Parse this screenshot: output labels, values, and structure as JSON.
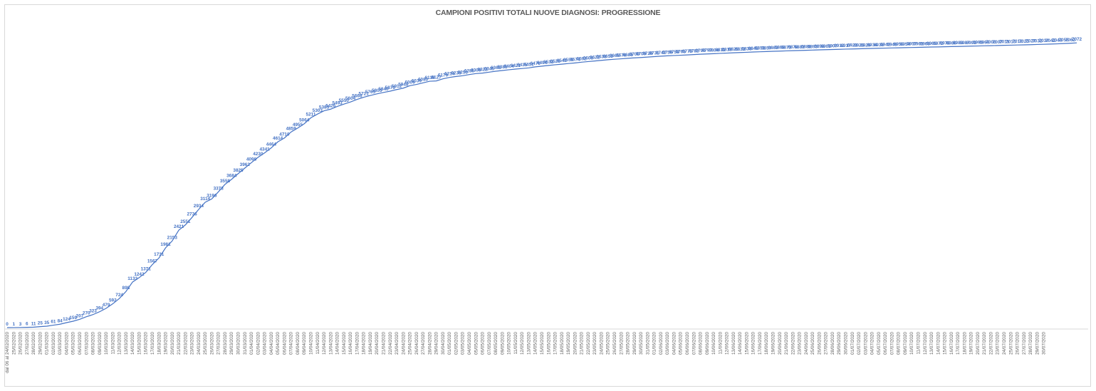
{
  "chart_data": {
    "type": "line",
    "title": "CAMPIONI POSITIVI TOTALI NUOVE DIAGNOSI: PROGRESSIONE",
    "xlabel": "",
    "ylabel": "",
    "grid": false,
    "legend": "none",
    "first_category": "dal 06 al 24/02/2020",
    "start_date": "25/02/2020",
    "end_date": "30/07/2020",
    "ylim": [
      0,
      7500
    ],
    "colors": {
      "line": "#4472c4",
      "labels": "#4472c4",
      "ticks": "#595959",
      "title": "#595959",
      "axis": "#d9d9d9"
    },
    "series": [
      {
        "values": [
          0,
          1,
          3,
          6,
          11,
          25,
          35,
          61,
          84,
          124,
          159,
          207,
          270,
          323,
          394,
          479,
          592,
          724,
          898,
          1133,
          1242,
          1371,
          1567,
          1731,
          1981,
          2153,
          2421,
          2551,
          2736,
          2934,
          3114,
          3196,
          3373,
          3558,
          3684,
          3825,
          3962,
          4098,
          4230,
          4341,
          4464,
          4614,
          4710,
          4859,
          4955,
          5064,
          5211,
          5303,
          5385,
          5426,
          5493,
          5550,
          5604,
          5668,
          5721,
          5765,
          5805,
          5840,
          5873,
          5912,
          5948,
          6009,
          6039,
          6080,
          6119,
          6127,
          6179,
          6214,
          6238,
          6256,
          6285,
          6309,
          6322,
          6345,
          6368,
          6385,
          6404,
          6421,
          6435,
          6451,
          6476,
          6494,
          6512,
          6528,
          6543,
          6559,
          6574,
          6592,
          6608,
          6622,
          6638,
          6653,
          6665,
          6676,
          6688,
          6700,
          6709,
          6720,
          6731,
          6742,
          6750,
          6758,
          6765,
          6773,
          6782,
          6790,
          6797,
          6804,
          6811,
          6818,
          6825,
          6832,
          6838,
          6845,
          6851,
          6857,
          6863,
          6868,
          6873,
          6878,
          6883,
          6888,
          6893,
          6898,
          6903,
          6907,
          6912,
          6917,
          6921,
          6925,
          6929,
          6934,
          6938,
          6942,
          6946,
          6950,
          6954,
          6957,
          6961,
          6965,
          6969,
          6972,
          6976,
          6980,
          6983,
          6987,
          6991,
          6995,
          6999,
          7003,
          7007,
          7011,
          7015,
          7019,
          7023,
          7027,
          7032,
          7037,
          7042,
          7048,
          7055,
          7062,
          7072
        ]
      }
    ]
  }
}
